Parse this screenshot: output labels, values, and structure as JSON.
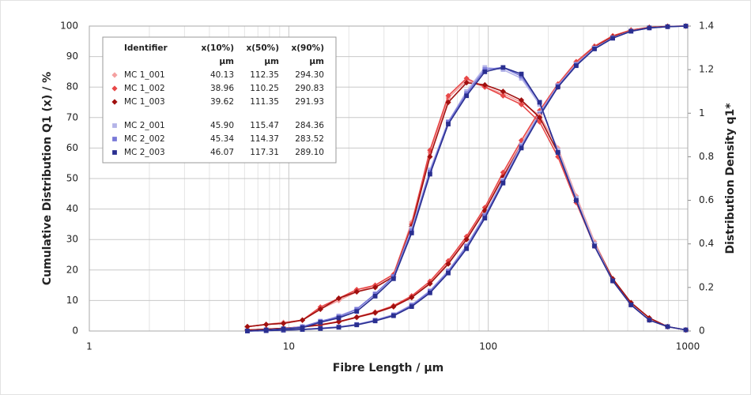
{
  "chart_data": {
    "type": "line",
    "x_label": "Fibre Length / µm",
    "y_label": "Cumulative Distribution Q1 (x) / %",
    "y2_label": "Distribution Density q1*",
    "x_scale": "log",
    "xlim": [
      1,
      1000
    ],
    "xticks": [
      1,
      10,
      100,
      1000
    ],
    "ylim": [
      0,
      100
    ],
    "yticks": [
      0,
      10,
      20,
      30,
      40,
      50,
      60,
      70,
      80,
      90,
      100
    ],
    "y2lim": [
      0,
      1.4
    ],
    "y2ticks": [
      0,
      0.2,
      0.4,
      0.6,
      0.8,
      1,
      1.2,
      1.4
    ],
    "grid": true,
    "minor_x_grid": true,
    "legend_position": "upper left",
    "legend_headers": [
      "Identifier",
      "x(10%)",
      "x(50%)",
      "x(90%)"
    ],
    "legend_units": [
      "µm",
      "µm",
      "µm"
    ],
    "x": [
      6.2,
      7.7,
      9.4,
      11.7,
      14.4,
      17.8,
      21.9,
      27.1,
      33.5,
      41.3,
      51,
      63,
      77.8,
      96.1,
      118.6,
      146.5,
      180.9,
      223.4,
      275.9,
      340.7,
      420.7,
      519.6,
      641.6,
      792.4,
      978.5
    ],
    "series": [
      {
        "name": "MC 1_001",
        "color": "#f4a0a0",
        "marker": "diamond",
        "stats": [
          "40.13",
          "112.35",
          "294.30"
        ],
        "values": [
          0.3,
          0.6,
          0.9,
          1.3,
          2,
          3,
          4.4,
          5.9,
          7.9,
          11,
          15.7,
          22.3,
          30.3,
          39.5,
          51,
          61.5,
          71.5,
          80.5,
          88,
          93.2,
          96.6,
          98.6,
          99.5,
          99.9,
          100
        ],
        "density": [
          0.02,
          0.03,
          0.04,
          0.05,
          0.1,
          0.14,
          0.18,
          0.21,
          0.26,
          0.5,
          0.82,
          1.07,
          1.15,
          1.12,
          1.09,
          1.05,
          0.99,
          0.84,
          0.62,
          0.41,
          0.24,
          0.13,
          0.06,
          0.02,
          0.005
        ]
      },
      {
        "name": "MC 1_002",
        "color": "#e84848",
        "marker": "diamond",
        "stats": [
          "38.96",
          "110.25",
          "290.83"
        ],
        "values": [
          0.3,
          0.6,
          0.9,
          1.4,
          2.1,
          3.1,
          4.6,
          6.2,
          8.3,
          11.5,
          16.3,
          23,
          31,
          40.5,
          52,
          62.5,
          72.3,
          81,
          88.3,
          93.4,
          96.8,
          98.7,
          99.6,
          99.9,
          100
        ],
        "density": [
          0.02,
          0.03,
          0.035,
          0.05,
          0.11,
          0.15,
          0.19,
          0.21,
          0.26,
          0.49,
          0.83,
          1.08,
          1.16,
          1.12,
          1.08,
          1.04,
          0.96,
          0.8,
          0.59,
          0.39,
          0.23,
          0.12,
          0.05,
          0.02,
          0.005
        ]
      },
      {
        "name": "MC 1_003",
        "color": "#a0100f",
        "marker": "diamond",
        "stats": [
          "39.62",
          "111.35",
          "291.93"
        ],
        "values": [
          0.3,
          0.6,
          0.9,
          1.3,
          2,
          3,
          4.5,
          6,
          8,
          11,
          15.5,
          22,
          30,
          39.5,
          50.5,
          61,
          71,
          80,
          87.5,
          93,
          96.5,
          98.5,
          99.5,
          99.9,
          100
        ],
        "density": [
          0.02,
          0.03,
          0.035,
          0.05,
          0.1,
          0.15,
          0.18,
          0.2,
          0.25,
          0.48,
          0.8,
          1.05,
          1.14,
          1.13,
          1.1,
          1.06,
          0.98,
          0.82,
          0.6,
          0.4,
          0.24,
          0.13,
          0.06,
          0.02,
          0.005
        ]
      },
      {
        "name": "MC 2_001",
        "color": "#b4b4e8",
        "marker": "square",
        "stats": [
          "45.90",
          "115.47",
          "284.36"
        ],
        "values": [
          0,
          0.1,
          0.3,
          0.5,
          0.9,
          1.4,
          2.2,
          3.6,
          5.4,
          8.6,
          13.2,
          19.8,
          28,
          38,
          49.5,
          61,
          71.5,
          80.5,
          87.5,
          92.8,
          96.2,
          98.4,
          99.4,
          99.8,
          100
        ],
        "density": [
          0,
          0.005,
          0.01,
          0.02,
          0.04,
          0.07,
          0.1,
          0.17,
          0.25,
          0.47,
          0.74,
          0.96,
          1.1,
          1.21,
          1.2,
          1.16,
          1.04,
          0.83,
          0.61,
          0.4,
          0.23,
          0.12,
          0.05,
          0.02,
          0.005
        ]
      },
      {
        "name": "MC 2_002",
        "color": "#7878d8",
        "marker": "square",
        "stats": [
          "45.34",
          "114.37",
          "283.52"
        ],
        "values": [
          0,
          0.1,
          0.3,
          0.5,
          0.9,
          1.3,
          2.1,
          3.5,
          5.2,
          8.4,
          13,
          19.5,
          27.7,
          37.7,
          49,
          60.5,
          71,
          80.3,
          87.3,
          92.6,
          96.1,
          98.3,
          99.4,
          99.8,
          100
        ],
        "density": [
          0,
          0.005,
          0.01,
          0.02,
          0.045,
          0.065,
          0.1,
          0.17,
          0.25,
          0.46,
          0.73,
          0.96,
          1.09,
          1.2,
          1.21,
          1.17,
          1.05,
          0.82,
          0.6,
          0.39,
          0.23,
          0.12,
          0.05,
          0.02,
          0.005
        ]
      },
      {
        "name": "MC 2_003",
        "color": "#2a2f90",
        "marker": "square",
        "stats": [
          "46.07",
          "117.31",
          "289.10"
        ],
        "values": [
          0,
          0.1,
          0.3,
          0.5,
          0.8,
          1.2,
          2,
          3.3,
          5,
          8,
          12.5,
          19,
          27,
          37,
          48.5,
          60,
          70.5,
          80,
          87,
          92.5,
          96,
          98.3,
          99.4,
          99.8,
          100
        ],
        "density": [
          0,
          0.005,
          0.01,
          0.015,
          0.04,
          0.06,
          0.09,
          0.16,
          0.24,
          0.45,
          0.72,
          0.95,
          1.08,
          1.19,
          1.21,
          1.18,
          1.05,
          0.82,
          0.6,
          0.39,
          0.23,
          0.12,
          0.05,
          0.02,
          0.005
        ]
      }
    ]
  }
}
